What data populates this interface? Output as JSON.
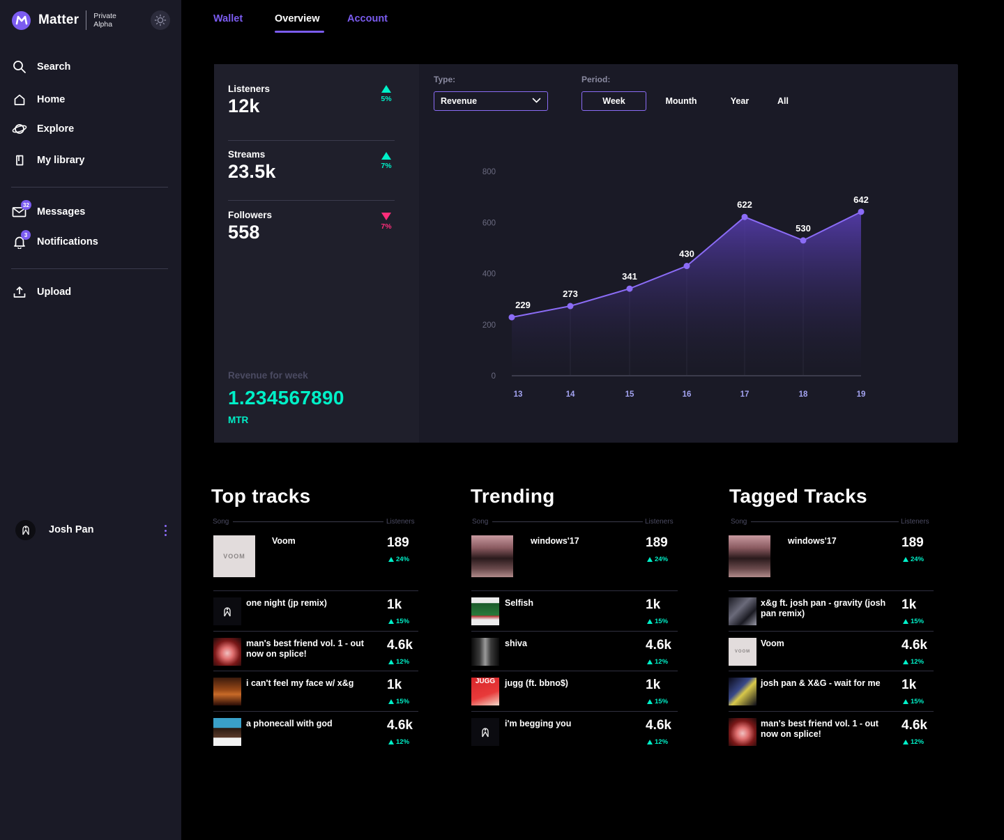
{
  "app": {
    "name": "Matter",
    "tag_line1": "Private",
    "tag_line2": "Alpha"
  },
  "nav": {
    "search": "Search",
    "home": "Home",
    "explore": "Explore",
    "library": "My library",
    "messages": "Messages",
    "messages_badge": "32",
    "notifications": "Notifications",
    "notifications_badge": "3",
    "upload": "Upload"
  },
  "user": {
    "name": "Josh Pan"
  },
  "tabs": [
    {
      "label": "Wallet",
      "active": false
    },
    {
      "label": "Overview",
      "active": true
    },
    {
      "label": "Account",
      "active": false
    }
  ],
  "stats": {
    "listeners": {
      "label": "Listeners",
      "value": "12k",
      "delta": "5%",
      "trend": "up"
    },
    "streams": {
      "label": "Streams",
      "value": "23.5k",
      "delta": "7%",
      "trend": "up"
    },
    "followers": {
      "label": "Followers",
      "value": "558",
      "delta": "7%",
      "trend": "down"
    },
    "revenue_label": "Revenue for week",
    "revenue_value": "1.234567890",
    "revenue_unit": "MTR"
  },
  "controls": {
    "type_label": "Type:",
    "type_value": "Revenue",
    "period_label": "Period:",
    "periods": [
      "Week",
      "Mounth",
      "Year",
      "All"
    ],
    "active_period": "Week"
  },
  "chart_data": {
    "type": "area",
    "x": [
      "13",
      "14",
      "15",
      "16",
      "17",
      "18",
      "19"
    ],
    "y": [
      229,
      273,
      341,
      430,
      622,
      530,
      642
    ],
    "data_labels": [
      "229",
      "273",
      "341",
      "430",
      "622",
      "530",
      "642"
    ],
    "yticks": [
      "0",
      "200",
      "400",
      "600",
      "800"
    ],
    "ylim": [
      0,
      800
    ],
    "grid": "vertical",
    "colors": {
      "line": "#8b6cf6",
      "fill": "#5a3fb8",
      "axis_text": "#6b6b80",
      "x_tick_text": "#a3a3f0"
    }
  },
  "lists": {
    "top": {
      "title": "Top tracks",
      "song_header": "Song",
      "listeners_header": "Listeners",
      "tracks": [
        {
          "title": "Voom",
          "count": "189",
          "delta": "24%"
        },
        {
          "title": "one night (jp remix)",
          "count": "1k",
          "delta": "15%"
        },
        {
          "title": "man's best friend vol. 1 - out now on splice!",
          "count": "4.6k",
          "delta": "12%"
        },
        {
          "title": "i can't feel my face w/ x&g",
          "count": "1k",
          "delta": "15%"
        },
        {
          "title": "a phonecall with god",
          "count": "4.6k",
          "delta": "12%"
        }
      ]
    },
    "trending": {
      "title": "Trending",
      "song_header": "Song",
      "listeners_header": "Listeners",
      "tracks": [
        {
          "title": "windows'17",
          "count": "189",
          "delta": "24%"
        },
        {
          "title": "Selfish",
          "count": "1k",
          "delta": "15%"
        },
        {
          "title": "shiva",
          "count": "4.6k",
          "delta": "12%"
        },
        {
          "title": "jugg (ft. bbno$)",
          "count": "1k",
          "delta": "15%"
        },
        {
          "title": "i'm begging you",
          "count": "4.6k",
          "delta": "12%"
        }
      ]
    },
    "tagged": {
      "title": "Tagged Tracks",
      "song_header": "Song",
      "listeners_header": "Listeners",
      "tracks": [
        {
          "title": "windows'17",
          "count": "189",
          "delta": "24%"
        },
        {
          "title": "x&g ft. josh pan - gravity (josh pan remix)",
          "count": "1k",
          "delta": "15%"
        },
        {
          "title": "Voom",
          "count": "4.6k",
          "delta": "12%"
        },
        {
          "title": "josh pan & X&G - wait for me",
          "count": "1k",
          "delta": "15%"
        },
        {
          "title": "man's best friend vol. 1 - out now on splice!",
          "count": "4.6k",
          "delta": "12%"
        }
      ]
    },
    "cover_texts": {
      "voom": "VOOM",
      "jugg": "JUGG"
    }
  },
  "colors": {
    "accent": "#7b5cf0",
    "positive": "#00f0c8",
    "negative": "#ff2d7a",
    "sidebar_bg": "#1a1a26",
    "page_bg": "#000000"
  }
}
